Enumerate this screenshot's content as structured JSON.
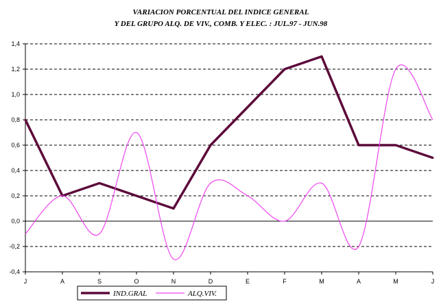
{
  "chart_data": {
    "type": "line",
    "title_lines": [
      "VARIACION PORCENTUAL DEL INDICE GENERAL",
      "Y DEL GRUPO ALQ. DE VIV., COMB. Y ELEC. : JUL.97 - JUN.98"
    ],
    "categories": [
      "J",
      "A",
      "S",
      "O",
      "N",
      "D",
      "E",
      "F",
      "M",
      "A",
      "M",
      "J"
    ],
    "ylim": [
      -0.4,
      1.4
    ],
    "yticks": [
      -0.4,
      -0.2,
      0.0,
      0.2,
      0.4,
      0.6,
      0.8,
      1.0,
      1.2,
      1.4
    ],
    "ytick_labels": [
      "-0,4",
      "-0,2",
      "0,0",
      "0,2",
      "0,4",
      "0,6",
      "0,8",
      "1,0",
      "1,2",
      "1,4"
    ],
    "grid": "horizontal-dashed",
    "legend_position": "bottom-left",
    "series": [
      {
        "name": "IND.GRAL",
        "color": "#5c0a3a",
        "style": "thick-straight",
        "values": [
          0.8,
          0.2,
          0.3,
          0.2,
          0.1,
          0.6,
          0.9,
          1.2,
          1.3,
          0.6,
          0.6,
          0.5
        ]
      },
      {
        "name": "ALQ.VIV.",
        "color": "#ee44ee",
        "style": "thin-smooth",
        "values": [
          -0.1,
          0.2,
          -0.1,
          0.7,
          -0.3,
          0.3,
          0.2,
          0.0,
          0.3,
          -0.2,
          1.2,
          0.8
        ]
      }
    ]
  }
}
